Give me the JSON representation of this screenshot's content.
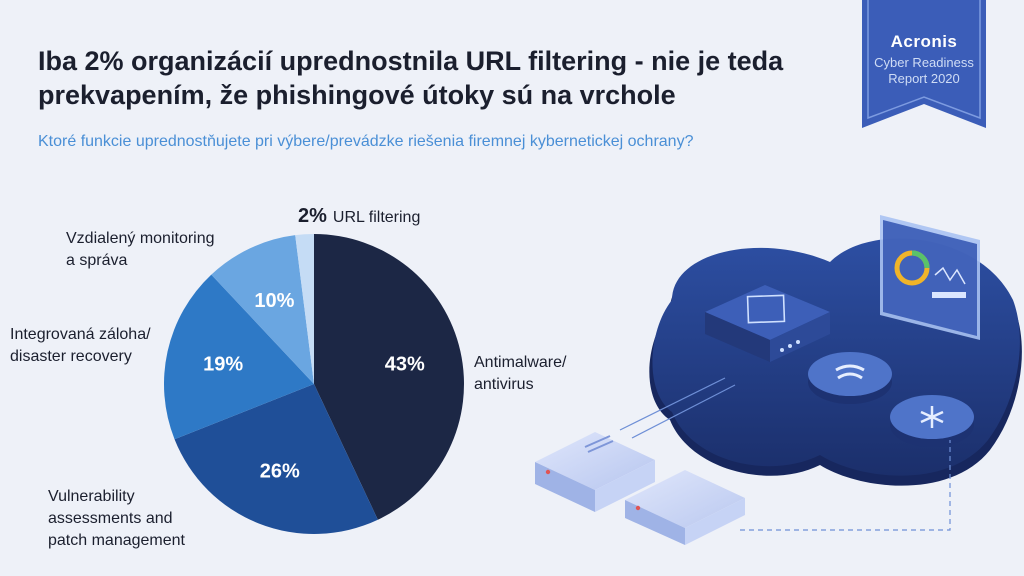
{
  "header": {
    "title_line1": "Iba 2% organizácií uprednostnila URL filtering - nie je teda",
    "title_line2": "prekvapením, že phishingové útoky sú na vrchole",
    "subtitle": "Ktoré funkcie uprednostňujete pri výbere/prevádzke riešenia firemnej kybernetickej ochrany?"
  },
  "badge": {
    "brand": "Acronis",
    "line1": "Cyber Readiness",
    "line2": "Report 2020",
    "color": "#3b5db8"
  },
  "chart_data": {
    "type": "pie",
    "start_angle_deg": 0,
    "direction": "clockwise",
    "slices": [
      {
        "label_lines": [
          "Antimalware/",
          "antivirus"
        ],
        "value": 43,
        "value_label": "43%",
        "color": "#1c2745"
      },
      {
        "label_lines": [
          "Vulnerability",
          "assessments and",
          "patch management"
        ],
        "value": 26,
        "value_label": "26%",
        "color": "#1f4f98"
      },
      {
        "label_lines": [
          "Integrovaná záloha/",
          "disaster recovery"
        ],
        "value": 19,
        "value_label": "19%",
        "color": "#2e79c6"
      },
      {
        "label_lines": [
          "Vzdialený monitoring",
          "a správa"
        ],
        "value": 10,
        "value_label": "10%",
        "color": "#6aa6e1"
      },
      {
        "label_lines": [
          "URL filtering"
        ],
        "value": 2,
        "value_label": "2%",
        "color": "#c5dcf5"
      }
    ]
  }
}
